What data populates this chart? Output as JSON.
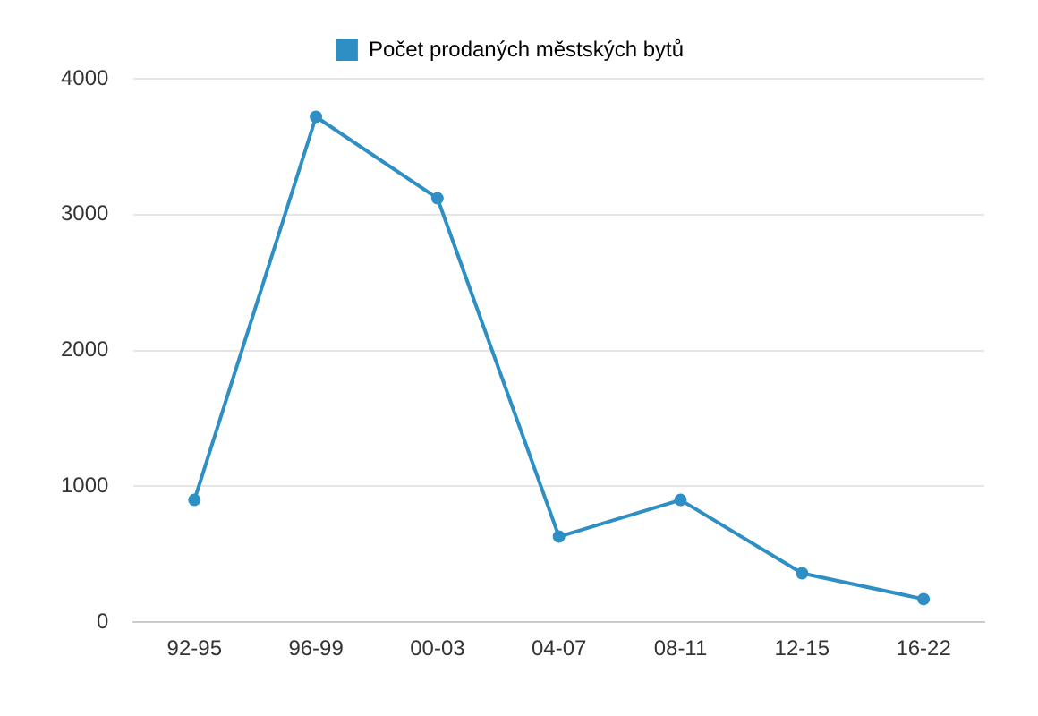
{
  "chart_data": {
    "type": "line",
    "categories": [
      "92-95",
      "96-99",
      "00-03",
      "04-07",
      "08-11",
      "12-15",
      "16-22"
    ],
    "series": [
      {
        "name": "Počet prodaných městských bytů",
        "color": "#2e8fc4",
        "values": [
          900,
          3720,
          3120,
          630,
          900,
          360,
          170
        ]
      }
    ],
    "ylim": [
      0,
      4000
    ],
    "yticks": [
      0,
      1000,
      2000,
      3000,
      4000
    ],
    "grid": "y",
    "legend": "top",
    "marker": "circle",
    "line_style": "solid"
  }
}
